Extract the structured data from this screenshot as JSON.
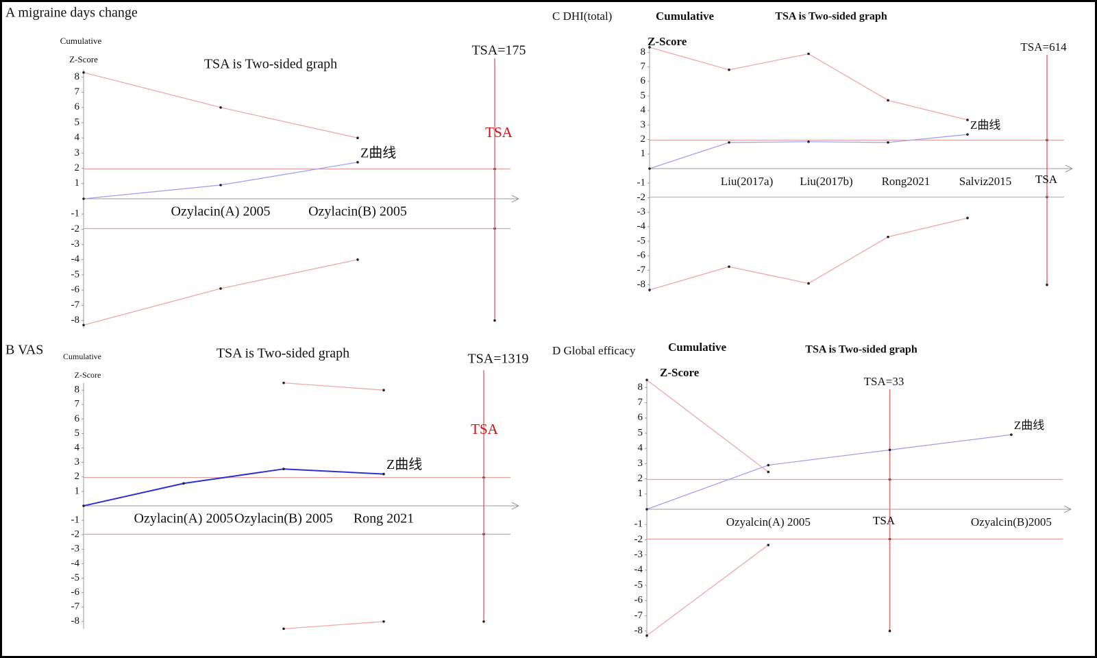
{
  "chart_data": [
    {
      "type": "line",
      "title": "A migraine days change",
      "subtitle": "TSA is Two-sided graph",
      "ylabel_top": "Cumulative",
      "ylabel": "Z-Score",
      "categories": [
        null,
        "Ozylacin(A) 2005",
        "Ozylacin(B) 2005",
        "TSA"
      ],
      "tsa": {
        "label": "TSA=175",
        "category": 3,
        "marker_position": "top",
        "color": "#d01010"
      },
      "ylim": [
        -8.5,
        8.5
      ],
      "yticks": [
        8,
        7,
        6,
        5,
        4,
        3,
        2,
        1,
        -1,
        -2,
        -3,
        -4,
        -5,
        -6,
        -7,
        -8
      ],
      "hlines": [
        1.96,
        -1.96
      ],
      "series": [
        {
          "label": "Z曲线",
          "color": "#a0a0f0",
          "values": [
            0,
            0.9,
            2.4,
            null
          ]
        },
        {
          "color": "#f0a8a8",
          "values": [
            8.3,
            6.0,
            4.0,
            null
          ]
        },
        {
          "color": "#f0a8a8",
          "values": [
            -8.3,
            -5.9,
            -4.0,
            null
          ]
        }
      ]
    },
    {
      "type": "line",
      "title": "B VAS",
      "subtitle": "TSA is Two-sided graph",
      "ylabel_top": "Cumulative",
      "ylabel": "Z-Score",
      "categories": [
        null,
        "Ozylacin(A) 2005",
        "Ozylacin(B) 2005",
        "Rong 2021",
        "TSA"
      ],
      "tsa": {
        "label": "TSA=1319",
        "category": 4,
        "marker_position": "top",
        "color": "#d01010"
      },
      "ylim": [
        -8.5,
        8.5
      ],
      "yticks": [
        8,
        7,
        6,
        5,
        4,
        3,
        2,
        1,
        -1,
        -2,
        -3,
        -4,
        -5,
        -6,
        -7,
        -8
      ],
      "hlines": [
        1.96,
        -1.96
      ],
      "series": [
        {
          "label": "Z曲线",
          "color": "#3030d0",
          "values": [
            0,
            1.55,
            2.55,
            2.2,
            null
          ]
        },
        {
          "color": "#f0a8a8",
          "values": [
            null,
            null,
            8.5,
            8.0,
            null
          ]
        },
        {
          "color": "#f0a8a8",
          "values": [
            null,
            null,
            -8.5,
            -8.0,
            null
          ]
        }
      ]
    },
    {
      "type": "line",
      "title": "C DHI(total)",
      "subtitle": "TSA is Two-sided graph",
      "ylabel_top": "Cumulative",
      "ylabel": "Z-Score",
      "categories": [
        null,
        "Liu(2017a)",
        "Liu(2017b)",
        "Rong2021",
        "Salviz2015",
        "TSA"
      ],
      "tsa": {
        "label": "TSA=614",
        "category": 5,
        "marker_position": "axis",
        "color": "#000000"
      },
      "ylim": [
        -8.5,
        8.5
      ],
      "yticks": [
        8,
        7,
        6,
        5,
        4,
        3,
        2,
        1,
        -1,
        -2,
        -3,
        -4,
        -5,
        -6,
        -7,
        -8
      ],
      "hlines": [
        1.96,
        -1.96
      ],
      "series": [
        {
          "label": "Z曲线",
          "color": "#a0a0f0",
          "values": [
            0,
            1.8,
            1.85,
            1.8,
            2.35,
            null
          ]
        },
        {
          "color": "#f0a8a8",
          "values": [
            8.35,
            6.8,
            7.9,
            4.7,
            3.35,
            null
          ]
        },
        {
          "color": "#f0a8a8",
          "values": [
            -8.35,
            -6.75,
            -7.9,
            -4.7,
            -3.4,
            null
          ]
        }
      ]
    },
    {
      "type": "line",
      "title": "D Global efficacy",
      "subtitle": "TSA is Two-sided graph",
      "ylabel_top": "Cumulative",
      "ylabel": "Z-Score",
      "categories": [
        null,
        "Ozyalcin(A) 2005",
        "TSA",
        "Ozyalcin(B)2005"
      ],
      "tsa": {
        "label": "TSA=33",
        "category": 2,
        "marker_position": "axis",
        "color": "#000000"
      },
      "ylim": [
        -8.5,
        8.5
      ],
      "yticks": [
        8,
        7,
        6,
        5,
        4,
        3,
        2,
        1,
        -1,
        -2,
        -3,
        -4,
        -5,
        -6,
        -7,
        -8
      ],
      "hlines": [
        1.96,
        -1.96
      ],
      "series": [
        {
          "label": "Z曲线",
          "color": "#a0a0f0",
          "values": [
            0,
            2.9,
            3.9,
            4.9
          ]
        },
        {
          "color": "#f0a8a8",
          "values": [
            8.5,
            2.45,
            null,
            null
          ]
        },
        {
          "color": "#f0a8a8",
          "values": [
            -8.3,
            -2.35,
            null,
            null
          ]
        }
      ]
    }
  ]
}
